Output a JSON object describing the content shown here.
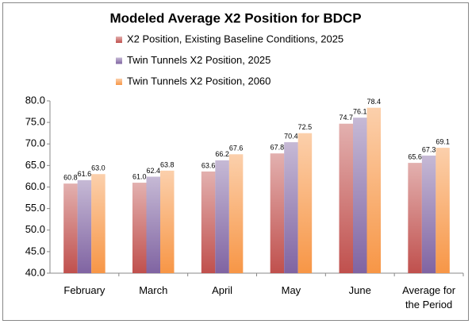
{
  "chart_data": {
    "type": "bar",
    "title": "Modeled Average X2 Position for BDCP",
    "categories": [
      "February",
      "March",
      "April",
      "May",
      "June",
      "Average for the Period"
    ],
    "series": [
      {
        "name": "X2 Position, Existing Baseline Conditions, 2025",
        "color": "#c0504d",
        "values": [
          60.8,
          61.0,
          63.6,
          67.8,
          74.7,
          65.6
        ],
        "value_labels": [
          "60.8",
          "61.0",
          "63.6",
          "67.8",
          "74.7",
          "65.6"
        ]
      },
      {
        "name": "Twin Tunnels X2 Position, 2025",
        "color": "#8064a2",
        "values": [
          61.6,
          62.4,
          66.2,
          70.4,
          76.1,
          67.3
        ],
        "value_labels": [
          "61.6",
          "62.4",
          "66.2",
          "70.4",
          "76.1",
          "67.3"
        ]
      },
      {
        "name": "Twin Tunnels X2 Position, 2060",
        "color": "#f79646",
        "values": [
          63.0,
          63.8,
          67.6,
          72.5,
          78.4,
          69.1
        ],
        "value_labels": [
          "63.0",
          "63.8",
          "67.6",
          "72.5",
          "78.4",
          "69.1"
        ]
      }
    ],
    "ylim": [
      40,
      80
    ],
    "yticks": [
      {
        "value": 40,
        "label": "40.0"
      },
      {
        "value": 45,
        "label": "45.0"
      },
      {
        "value": 50,
        "label": "50.0"
      },
      {
        "value": 55,
        "label": "55.0"
      },
      {
        "value": 60,
        "label": "60.0"
      },
      {
        "value": 65,
        "label": "65.0"
      },
      {
        "value": 70,
        "label": "70.0"
      },
      {
        "value": 75,
        "label": "75.0"
      },
      {
        "value": 80,
        "label": "80.0"
      }
    ],
    "grid": false
  }
}
